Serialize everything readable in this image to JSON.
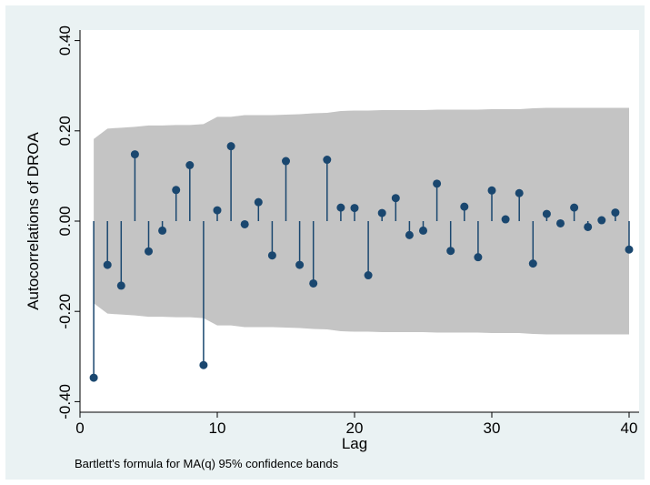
{
  "chart_data": {
    "type": "scatter",
    "subtype": "autocorrelogram-stem",
    "xlabel": "Lag",
    "ylabel": "Autocorrelations of DROA",
    "note": "Bartlett's formula for MA(q) 95% confidence bands",
    "xlim": [
      0,
      40
    ],
    "ylim": [
      -0.4,
      0.4
    ],
    "xticks": [
      0,
      10,
      20,
      30,
      40
    ],
    "yticks": [
      -0.4,
      -0.2,
      0.0,
      0.2,
      0.4
    ],
    "ytick_labels": [
      "-0.40",
      "-0.20",
      "0.00",
      "0.20",
      "0.40"
    ],
    "grid": false,
    "legend": "none",
    "colors": {
      "figure_background": "#eaf2f3",
      "plot_background": "#ffffff",
      "confidence_band": "#c4c4c4",
      "marker": "#1a476f"
    },
    "lags": [
      1,
      2,
      3,
      4,
      5,
      6,
      7,
      8,
      9,
      10,
      11,
      12,
      13,
      14,
      15,
      16,
      17,
      18,
      19,
      20,
      21,
      22,
      23,
      24,
      25,
      26,
      27,
      28,
      29,
      30,
      31,
      32,
      33,
      34,
      35,
      36,
      37,
      38,
      39,
      40
    ],
    "autocorrelations": [
      -0.347,
      -0.097,
      -0.143,
      0.148,
      -0.067,
      -0.021,
      0.069,
      0.124,
      -0.319,
      0.024,
      0.166,
      -0.007,
      0.042,
      -0.076,
      0.133,
      -0.097,
      -0.138,
      0.136,
      0.03,
      0.029,
      -0.12,
      0.018,
      0.051,
      -0.031,
      -0.021,
      0.083,
      -0.066,
      0.032,
      -0.08,
      0.068,
      0.004,
      0.062,
      -0.094,
      0.016,
      -0.005,
      0.03,
      -0.013,
      0.002,
      0.019,
      -0.063
    ],
    "confidence_band_upper": [
      0.182,
      0.205,
      0.207,
      0.209,
      0.212,
      0.212,
      0.213,
      0.213,
      0.215,
      0.231,
      0.231,
      0.235,
      0.235,
      0.235,
      0.236,
      0.237,
      0.239,
      0.24,
      0.244,
      0.245,
      0.245,
      0.246,
      0.246,
      0.246,
      0.246,
      0.247,
      0.247,
      0.247,
      0.247,
      0.248,
      0.248,
      0.248,
      0.25,
      0.251,
      0.251,
      0.251,
      0.251,
      0.251,
      0.251,
      0.251
    ]
  }
}
